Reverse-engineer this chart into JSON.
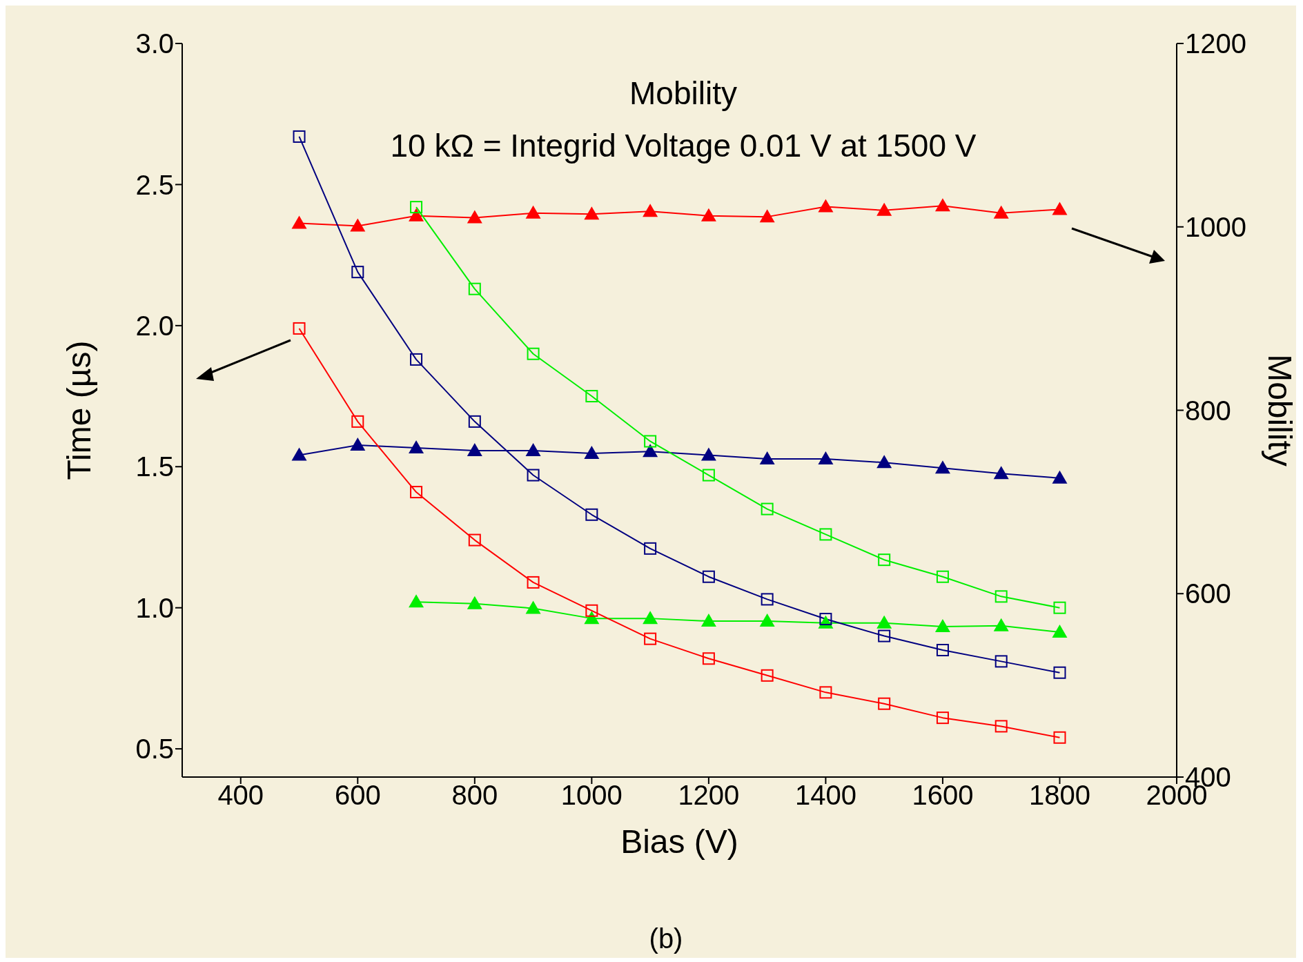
{
  "chart_data": {
    "type": "line",
    "xlabel": "Bias (V)",
    "ylabel": "Time (µs)",
    "y2label": "Mobility",
    "annotations": [
      "Mobility",
      "10 kΩ = Integrid Voltage 0.01 V at 1500 V",
      "(b)"
    ],
    "xlim": [
      300,
      2000
    ],
    "xticks": [
      400,
      600,
      800,
      1000,
      1200,
      1400,
      1600,
      1800,
      2000
    ],
    "ylim": [
      0.4,
      3.0
    ],
    "yticks": [
      {
        "value": 0.5,
        "label": "0.5"
      },
      {
        "value": 1,
        "label": "1.0"
      },
      {
        "value": 1.5,
        "label": "1.5"
      },
      {
        "value": 2,
        "label": "2.0"
      },
      {
        "value": 2.5,
        "label": "2.5"
      },
      {
        "value": 3,
        "label": "3.0"
      }
    ],
    "y2lim": [
      400,
      1200
    ],
    "y2ticks": [
      400,
      600,
      800,
      1000,
      1200
    ],
    "grid": false,
    "line_style": "solid",
    "series": [
      {
        "color": "#000080",
        "marker": "square",
        "x": [
          500,
          600,
          700,
          800,
          900,
          1000,
          1100,
          1200,
          1300,
          1400,
          1500,
          1600,
          1700,
          1800
        ],
        "values": [
          2.67,
          2.19,
          1.88,
          1.66,
          1.47,
          1.33,
          1.21,
          1.11,
          1.03,
          0.96,
          0.9,
          0.85,
          0.81,
          0.77
        ]
      },
      {
        "color": "#ff0000",
        "marker": "square",
        "x": [
          500,
          600,
          700,
          800,
          900,
          1000,
          1100,
          1200,
          1300,
          1400,
          1500,
          1600,
          1700,
          1800
        ],
        "values": [
          1.99,
          1.66,
          1.41,
          1.24,
          1.09,
          0.99,
          0.89,
          0.82,
          0.76,
          0.7,
          0.66,
          0.61,
          0.58,
          0.54
        ]
      },
      {
        "color": "#00ee00",
        "marker": "square",
        "x": [
          700,
          800,
          900,
          1000,
          1100,
          1200,
          1300,
          1400,
          1500,
          1600,
          1700,
          1800
        ],
        "values": [
          2.42,
          2.13,
          1.9,
          1.75,
          1.59,
          1.47,
          1.35,
          1.26,
          1.17,
          1.11,
          1.04,
          1.0
        ]
      },
      {
        "color": "#ff0000",
        "marker": "triangle",
        "axis": "y2",
        "x": [
          500,
          600,
          700,
          800,
          900,
          1000,
          1100,
          1200,
          1300,
          1400,
          1500,
          1600,
          1700,
          1800
        ],
        "values": [
          1004,
          1001,
          1012,
          1010,
          1015,
          1014,
          1017,
          1012,
          1011,
          1022,
          1018,
          1023,
          1015,
          1019
        ]
      },
      {
        "color": "#000080",
        "marker": "triangle",
        "axis": "y2",
        "x": [
          500,
          600,
          700,
          800,
          900,
          1000,
          1100,
          1200,
          1300,
          1400,
          1500,
          1600,
          1700,
          1800
        ],
        "values": [
          751,
          762,
          759,
          756,
          756,
          753,
          755,
          751,
          747,
          747,
          743,
          737,
          731,
          726
        ]
      },
      {
        "color": "#00ee00",
        "marker": "triangle",
        "axis": "y2",
        "x": [
          700,
          800,
          900,
          1000,
          1100,
          1200,
          1300,
          1400,
          1500,
          1600,
          1700,
          1800
        ],
        "values": [
          591,
          589,
          584,
          573,
          573,
          570,
          570,
          568,
          568,
          564,
          565,
          558
        ]
      }
    ]
  }
}
